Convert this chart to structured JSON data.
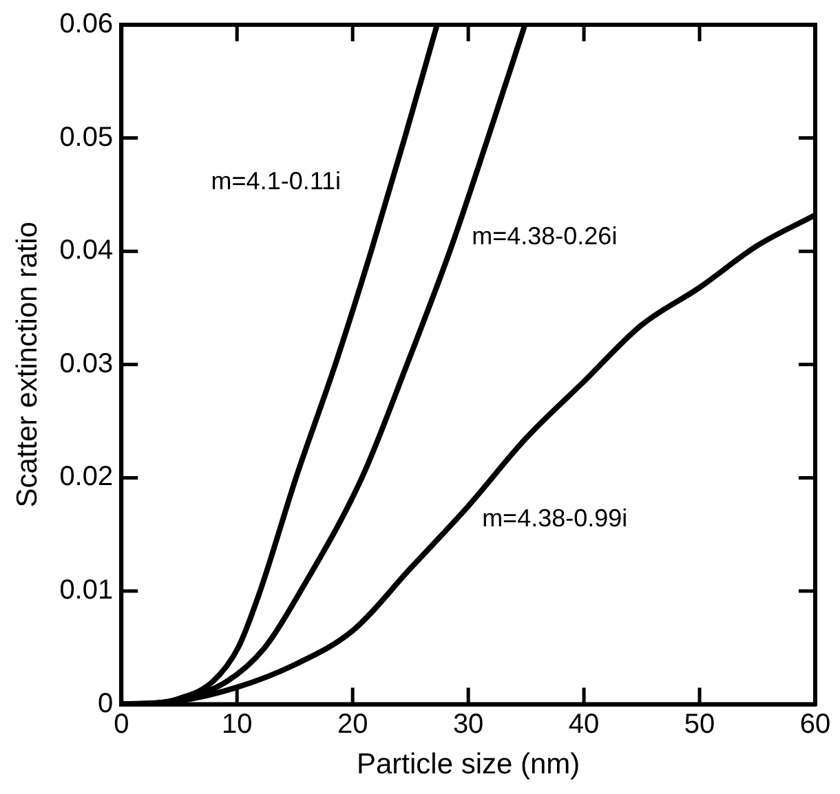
{
  "chart_data": {
    "type": "line",
    "xlabel": "Particle size (nm)",
    "ylabel": "Scatter extinction ratio",
    "xlim": [
      0,
      60
    ],
    "ylim": [
      0,
      0.06
    ],
    "xticks": [
      0,
      10,
      20,
      30,
      40,
      50,
      60
    ],
    "yticks": [
      0,
      0.01,
      0.02,
      0.03,
      0.04,
      0.05,
      0.06
    ],
    "grid": false,
    "legend": false,
    "marker": "none",
    "line_style": "solid",
    "series": [
      {
        "name": "m=4.1-0.11i",
        "color": "#000000",
        "x": [
          0,
          3,
          5,
          7.9,
          10.1,
          12,
          15.1,
          18.5,
          21.6,
          24.5,
          27.3
        ],
        "values": [
          0,
          0.0001,
          0.0005,
          0.002,
          0.005,
          0.01,
          0.02,
          0.03,
          0.04,
          0.05,
          0.06
        ]
      },
      {
        "name": "m=4.38-0.26i",
        "color": "#000000",
        "x": [
          0,
          3,
          5,
          9.1,
          12.4,
          15.5,
          20.8,
          24.7,
          28.4,
          31.7,
          34.9
        ],
        "values": [
          0,
          0.0001,
          0.0004,
          0.002,
          0.005,
          0.01,
          0.02,
          0.03,
          0.04,
          0.05,
          0.06
        ]
      },
      {
        "name": "m=4.38-0.99i",
        "color": "#000000",
        "x": [
          0,
          5,
          10,
          15,
          20,
          25,
          30,
          35,
          40,
          45,
          50,
          55,
          60
        ],
        "values": [
          0,
          0.0003,
          0.0015,
          0.0035,
          0.0065,
          0.012,
          0.0175,
          0.0235,
          0.0285,
          0.0335,
          0.0368,
          0.0405,
          0.0432
        ]
      }
    ]
  }
}
